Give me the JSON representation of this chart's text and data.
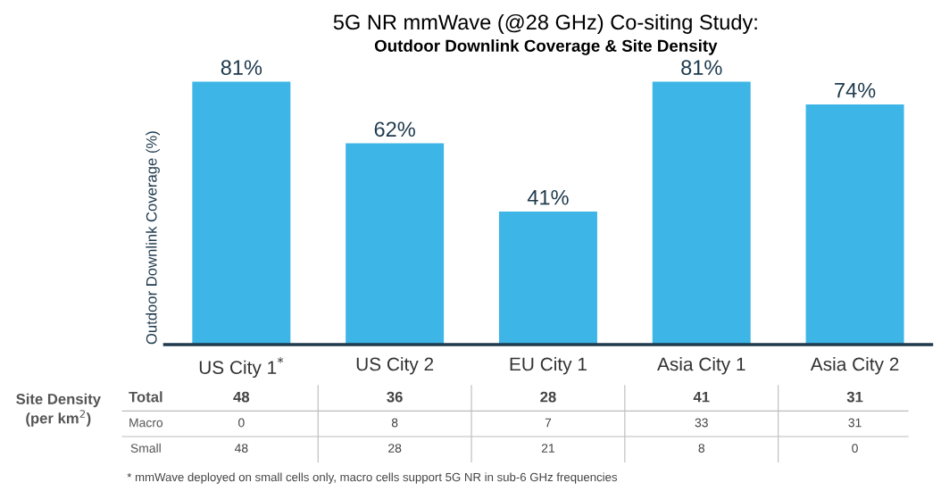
{
  "chart_data": {
    "type": "bar",
    "title": "5G NR mmWave (@28 GHz) Co-siting Study:",
    "subtitle": "Outdoor Downlink Coverage & Site Density",
    "ylabel": "Outdoor Downlink Coverage (%)",
    "categories": [
      "US City 1$^{*}$",
      "US City 2",
      "EU City 1",
      "Asia City 1",
      "Asia City 2"
    ],
    "values": [
      81,
      62,
      41,
      81,
      74
    ],
    "color": "#3db5e6",
    "value_labels": [
      "81%",
      "62%",
      "41%",
      "81%",
      "74%"
    ],
    "grid": false,
    "legend": false,
    "annotations": [
      "* mmWave deployed on small cells only, macro cells support 5G NR in sub-6 GHz frequencies",
      "Site Density\n(per km$^{2}$)",
      "Total",
      "48",
      "36",
      "28",
      "41",
      "31",
      "Macro",
      "0",
      "8",
      "7",
      "33",
      "31",
      "Small",
      "48",
      "28",
      "21",
      "8",
      "0"
    ]
  }
}
